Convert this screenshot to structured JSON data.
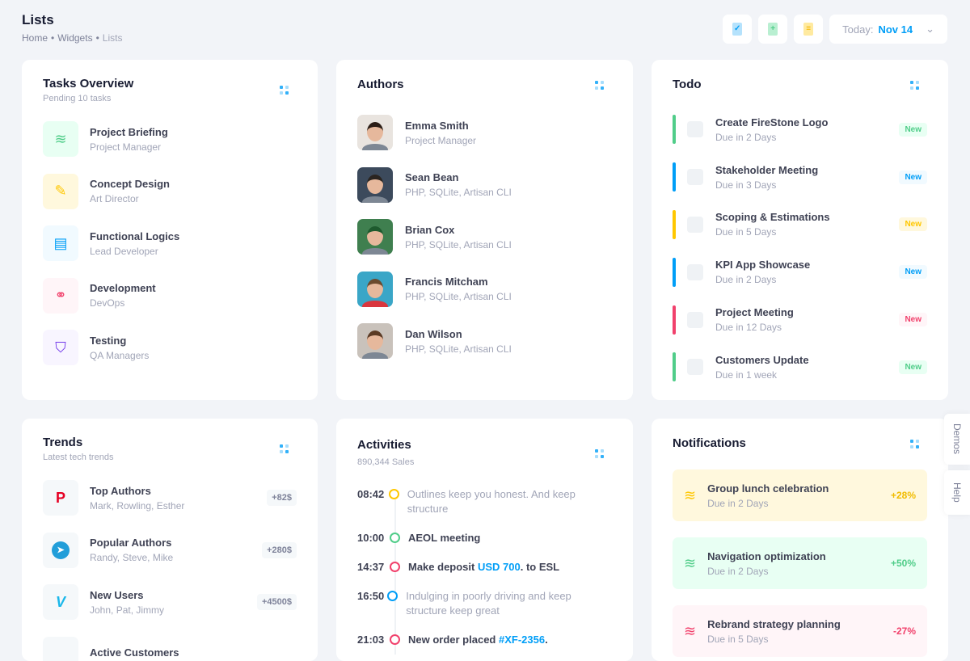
{
  "header": {
    "title": "Lists",
    "breadcrumbs": [
      "Home",
      "Widgets",
      "Lists"
    ],
    "date_label": "Today:",
    "date_value": "Nov 14"
  },
  "tasks": {
    "title": "Tasks Overview",
    "subtitle": "Pending 10 tasks",
    "items": [
      {
        "title": "Project Briefing",
        "sub": "Project Manager",
        "icon": "layers-icon",
        "color": "#50cd89",
        "bg": "#e8fff3"
      },
      {
        "title": "Concept Design",
        "sub": "Art Director",
        "icon": "pencil-icon",
        "color": "#ffc700",
        "bg": "#fff8dd"
      },
      {
        "title": "Functional Logics",
        "sub": "Lead Developer",
        "icon": "message-icon",
        "color": "#009ef7",
        "bg": "#f1faff"
      },
      {
        "title": "Development",
        "sub": "DevOps",
        "icon": "link-icon",
        "color": "#f1416c",
        "bg": "#fff5f8"
      },
      {
        "title": "Testing",
        "sub": "QA Managers",
        "icon": "shield-user-icon",
        "color": "#7239ea",
        "bg": "#f8f5ff"
      }
    ]
  },
  "authors": {
    "title": "Authors",
    "items": [
      {
        "name": "Emma Smith",
        "sub": "Project Manager"
      },
      {
        "name": "Sean Bean",
        "sub": "PHP, SQLite, Artisan CLI"
      },
      {
        "name": "Brian Cox",
        "sub": "PHP, SQLite, Artisan CLI"
      },
      {
        "name": "Francis Mitcham",
        "sub": "PHP, SQLite, Artisan CLI"
      },
      {
        "name": "Dan Wilson",
        "sub": "PHP, SQLite, Artisan CLI"
      }
    ]
  },
  "todo": {
    "title": "Todo",
    "items": [
      {
        "title": "Create FireStone Logo",
        "due": "Due in 2 Days",
        "badge": "New",
        "color": "#50cd89",
        "bg": "#e8fff3"
      },
      {
        "title": "Stakeholder Meeting",
        "due": "Due in 3 Days",
        "badge": "New",
        "color": "#009ef7",
        "bg": "#f1faff"
      },
      {
        "title": "Scoping & Estimations",
        "due": "Due in 5 Days",
        "badge": "New",
        "color": "#ffc700",
        "bg": "#fff8dd"
      },
      {
        "title": "KPI App Showcase",
        "due": "Due in 2 Days",
        "badge": "New",
        "color": "#009ef7",
        "bg": "#f1faff"
      },
      {
        "title": "Project Meeting",
        "due": "Due in 12 Days",
        "badge": "New",
        "color": "#f1416c",
        "bg": "#fff5f8"
      },
      {
        "title": "Customers Update",
        "due": "Due in 1 week",
        "badge": "New",
        "color": "#50cd89",
        "bg": "#e8fff3"
      }
    ]
  },
  "trends": {
    "title": "Trends",
    "subtitle": "Latest tech trends",
    "items": [
      {
        "title": "Top Authors",
        "sub": "Mark, Rowling, Esther",
        "value": "+82$",
        "icon": "pinterest-logo-icon"
      },
      {
        "title": "Popular Authors",
        "sub": "Randy, Steve, Mike",
        "value": "+280$",
        "icon": "telegram-logo-icon"
      },
      {
        "title": "New Users",
        "sub": "John, Pat, Jimmy",
        "value": "+4500$",
        "icon": "vimeo-logo-icon"
      },
      {
        "title": "Active Customers",
        "sub": "",
        "value": "",
        "icon": "app-icon"
      }
    ]
  },
  "activities": {
    "title": "Activities",
    "subtitle": "890,344 Sales",
    "items": [
      {
        "time": "08:42",
        "text": "Outlines keep you honest. And keep structure",
        "color": "#ffc700",
        "bold": false
      },
      {
        "time": "10:00",
        "text": "AEOL meeting",
        "color": "#50cd89",
        "bold": true
      },
      {
        "time": "14:37",
        "text": "Make deposit ",
        "link": "USD 700",
        "after": ". to ESL",
        "color": "#f1416c",
        "bold": true
      },
      {
        "time": "16:50",
        "text": "Indulging in poorly driving and keep structure keep great",
        "color": "#009ef7",
        "bold": false
      },
      {
        "time": "21:03",
        "text": "New order placed ",
        "link": "#XF-2356",
        "after": ".",
        "color": "#f1416c",
        "bold": true
      }
    ]
  },
  "notifications": {
    "title": "Notifications",
    "items": [
      {
        "title": "Group lunch celebration",
        "due": "Due in 2 Days",
        "value": "+28%",
        "color": "#ffc700",
        "bg": "#fff8dd"
      },
      {
        "title": "Navigation optimization",
        "due": "Due in 2 Days",
        "value": "+50%",
        "color": "#50cd89",
        "bg": "#e8fff3"
      },
      {
        "title": "Rebrand strategy planning",
        "due": "Due in 5 Days",
        "value": "-27%",
        "color": "#f1416c",
        "bg": "#fff5f8"
      }
    ]
  },
  "side": {
    "demos": "Demos",
    "help": "Help"
  }
}
